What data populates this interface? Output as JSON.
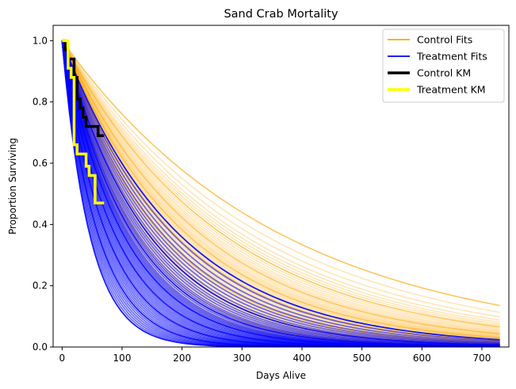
{
  "chart_data": {
    "type": "line",
    "title": "Sand Crab Mortality",
    "xlabel": "Days Alive",
    "ylabel": "Proportion Surviving",
    "xlim": [
      -15,
      745
    ],
    "ylim": [
      0,
      1.05
    ],
    "xticks": [
      0,
      100,
      200,
      300,
      400,
      500,
      600,
      700
    ],
    "yticks": [
      0.0,
      0.2,
      0.4,
      0.6,
      0.8,
      1.0
    ],
    "legend_position": "top-right",
    "grid": false,
    "series": [
      {
        "name": "Control Fits",
        "kind": "fit_curves",
        "color": "#ffa500",
        "curve_family": "exponential survival S(t)=exp(-t/tau)",
        "x_range": [
          0,
          730
        ],
        "tau_days": [
          365,
          335,
          315,
          300,
          290,
          282,
          275,
          268,
          262,
          256,
          250,
          245,
          240,
          236,
          232,
          228,
          224,
          220,
          217,
          214,
          211,
          208,
          205,
          202,
          199,
          196,
          193,
          190,
          187,
          184,
          181,
          178,
          175,
          172,
          169,
          166,
          163,
          160,
          157,
          154,
          151,
          148,
          145,
          142,
          139,
          136,
          133,
          130,
          127,
          124,
          121,
          118,
          115,
          112,
          109,
          106
        ]
      },
      {
        "name": "Treatment Fits",
        "kind": "fit_curves",
        "color": "#0000ff",
        "curve_family": "exponential survival S(t)=exp(-t/tau)",
        "x_range": [
          0,
          730
        ],
        "tau_days": [
          195,
          185,
          176,
          168,
          161,
          155,
          149,
          144,
          139,
          135,
          131,
          127,
          124,
          121,
          118,
          115,
          112,
          110,
          108,
          106,
          104,
          102,
          100,
          98,
          96,
          94,
          92,
          90,
          88,
          86,
          84,
          82,
          80,
          78,
          76,
          74,
          72,
          70,
          68,
          66,
          64,
          62,
          60,
          58,
          56,
          54,
          52,
          50,
          48,
          46
        ]
      },
      {
        "name": "Control KM",
        "kind": "step",
        "color": "#000000",
        "x": [
          0,
          5,
          10,
          20,
          25,
          30,
          35,
          40,
          50,
          60,
          70
        ],
        "y": [
          1.0,
          0.97,
          0.94,
          0.88,
          0.81,
          0.78,
          0.75,
          0.72,
          0.72,
          0.69,
          0.69
        ]
      },
      {
        "name": "Treatment KM",
        "kind": "step",
        "color": "#ffff00",
        "x": [
          0,
          10,
          15,
          20,
          25,
          30,
          40,
          45,
          55,
          70
        ],
        "y": [
          1.0,
          0.91,
          0.88,
          0.66,
          0.63,
          0.63,
          0.59,
          0.56,
          0.47,
          0.47
        ]
      }
    ]
  }
}
